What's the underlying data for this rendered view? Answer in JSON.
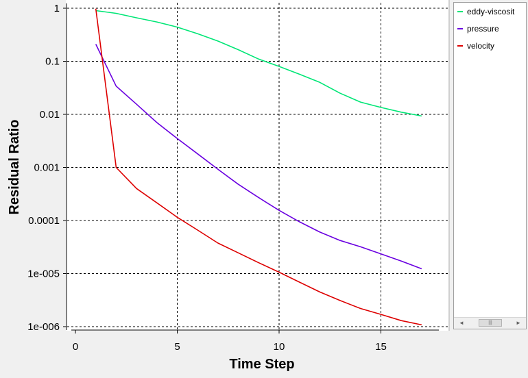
{
  "chart_data": {
    "type": "line",
    "xlabel": "Time Step",
    "ylabel": "Residual Ratio",
    "xlim": [
      -0.5,
      18.3
    ],
    "ylim": [
      1e-06,
      1
    ],
    "yscale": "log",
    "grid": true,
    "legend_position": "right",
    "x_ticks": [
      0,
      5,
      10,
      15
    ],
    "y_ticks": [
      1,
      0.1,
      0.01,
      0.001,
      0.0001,
      1e-05,
      1e-06
    ],
    "y_tick_labels": [
      "1",
      "0.1",
      "0.01",
      "0.001",
      "0.0001",
      "1e-005",
      "1e-006"
    ],
    "series": [
      {
        "name": "eddy-viscosit",
        "color": "#00e676",
        "x": [
          1,
          2,
          3,
          4,
          5,
          6,
          7,
          8,
          9,
          10,
          11,
          12,
          13,
          14,
          15,
          16,
          17
        ],
        "y": [
          0.9,
          0.8,
          0.66,
          0.55,
          0.44,
          0.33,
          0.24,
          0.165,
          0.11,
          0.08,
          0.057,
          0.04,
          0.025,
          0.017,
          0.0135,
          0.011,
          0.0093
        ]
      },
      {
        "name": "pressure",
        "color": "#6a00e0",
        "x": [
          1,
          2,
          3,
          4,
          5,
          6,
          7,
          8,
          9,
          10,
          11,
          12,
          13,
          14,
          15,
          16,
          17
        ],
        "y": [
          0.21,
          0.034,
          0.0155,
          0.007,
          0.0035,
          0.0018,
          0.00092,
          0.00048,
          0.00027,
          0.000155,
          9.45e-05,
          6.05e-05,
          4.2e-05,
          3.2e-05,
          2.35e-05,
          1.72e-05,
          1.23e-05
        ]
      },
      {
        "name": "velocity",
        "color": "#dd0000",
        "x": [
          1,
          2,
          3,
          4,
          5,
          6,
          7,
          8,
          9,
          10,
          11,
          12,
          13,
          14,
          15,
          16,
          17
        ],
        "y": [
          0.98,
          0.001,
          0.0004,
          0.000215,
          0.000115,
          6.6e-05,
          3.75e-05,
          2.45e-05,
          1.6e-05,
          1.06e-05,
          6.9e-06,
          4.5e-06,
          3.1e-06,
          2.2e-06,
          1.7e-06,
          1.3e-06,
          1.08e-06
        ]
      }
    ]
  },
  "legend": {
    "scroll_left": "◄",
    "scroll_right": "►",
    "thumb_grip": "|||"
  }
}
